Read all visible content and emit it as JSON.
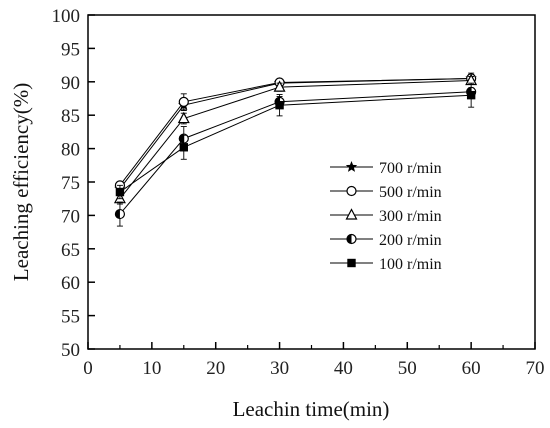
{
  "chart_data": {
    "type": "line",
    "xlabel": "Leachin time(min)",
    "ylabel": "Leaching efficiency(%)",
    "xlim": [
      0,
      70
    ],
    "ylim": [
      50,
      100
    ],
    "xticks": [
      0,
      10,
      20,
      30,
      40,
      50,
      60,
      70
    ],
    "yticks": [
      50,
      55,
      60,
      65,
      70,
      75,
      80,
      85,
      90,
      95,
      100
    ],
    "x": [
      5,
      15,
      30,
      60
    ],
    "grid": false,
    "legend_position": "center-right",
    "series": [
      {
        "name": "700 r/min",
        "marker": "star",
        "values": [
          74.0,
          86.5,
          89.8,
          90.5
        ],
        "errors": [
          0.5,
          0.8,
          0.5,
          0.6
        ]
      },
      {
        "name": "500 r/min",
        "marker": "open-circle",
        "values": [
          74.5,
          87.0,
          89.9,
          90.5
        ],
        "errors": [
          0.5,
          1.2,
          0.5,
          0.8
        ]
      },
      {
        "name": "300 r/min",
        "marker": "open-triangle",
        "values": [
          72.5,
          84.5,
          89.2,
          90.2
        ],
        "errors": [
          0.8,
          0.8,
          0.6,
          0.6
        ]
      },
      {
        "name": "200 r/min",
        "marker": "half-circle",
        "values": [
          70.2,
          81.5,
          87.0,
          88.5
        ],
        "errors": [
          1.8,
          1.8,
          0.8,
          0.6
        ]
      },
      {
        "name": "100 r/min",
        "marker": "filled-square",
        "values": [
          73.5,
          80.2,
          86.5,
          88.0
        ],
        "errors": [
          1.0,
          1.8,
          1.6,
          1.8
        ]
      }
    ]
  }
}
